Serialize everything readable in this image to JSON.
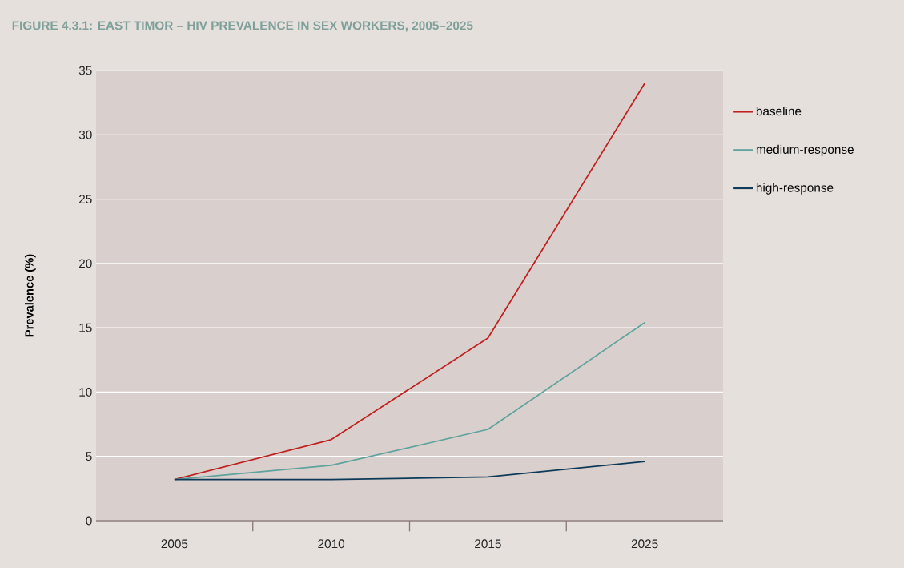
{
  "chart_data": {
    "type": "line",
    "title": "FIGURE 4.3.1: EAST TIMOR – HIV PREVALENCE IN SEX WORKERS, 2005–2025",
    "ylabel": "Prevalence (%)",
    "categories": [
      "2005",
      "2010",
      "2015",
      "2025"
    ],
    "series": [
      {
        "name": "baseline",
        "color": "#c0201e",
        "values": [
          3.2,
          6.3,
          14.2,
          34
        ]
      },
      {
        "name": "medium-response",
        "color": "#5fa39f",
        "values": [
          3.2,
          4.3,
          7.1,
          15.4
        ]
      },
      {
        "name": "high-response",
        "color": "#0e3a5a",
        "values": [
          3.2,
          3.2,
          3.4,
          4.6
        ]
      }
    ],
    "ylim": [
      0,
      35
    ],
    "yticks": [
      0,
      5,
      10,
      15,
      20,
      25,
      30,
      35
    ],
    "grid": "y",
    "legend": "right"
  }
}
